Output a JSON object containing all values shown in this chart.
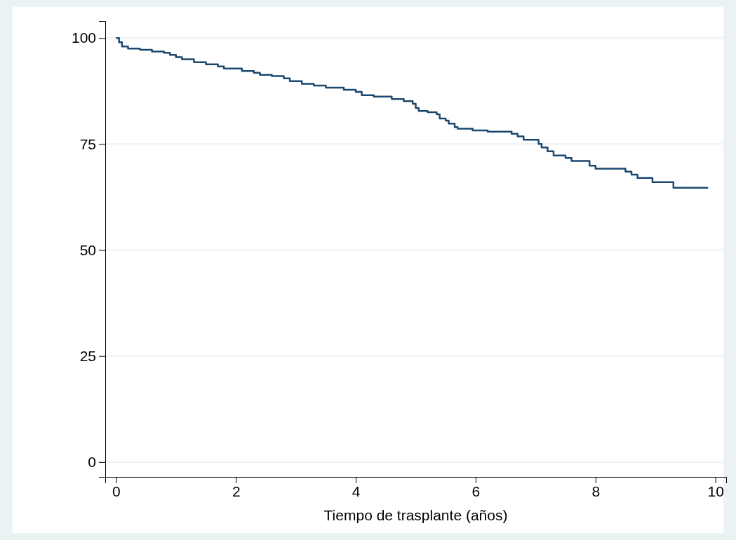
{
  "chart_data": {
    "type": "step",
    "xlabel": "Tiempo de trasplante (años)",
    "xlim": [
      -0.18,
      10.18
    ],
    "xticks": [
      0,
      2,
      4,
      6,
      8,
      10
    ],
    "ylim": [
      -3.5,
      104
    ],
    "yticks": [
      0,
      25,
      50,
      75,
      100
    ],
    "grid": "y",
    "marker": "none",
    "line_style": "solid",
    "series": [
      {
        "color": "#1a476f",
        "x": [
          0,
          0.05,
          0.1,
          0.2,
          0.4,
          0.6,
          0.8,
          0.9,
          1.0,
          1.1,
          1.3,
          1.5,
          1.7,
          1.8,
          2.1,
          2.3,
          2.4,
          2.6,
          2.8,
          2.9,
          3.1,
          3.3,
          3.5,
          3.8,
          4.0,
          4.1,
          4.3,
          4.6,
          4.8,
          4.95,
          5.0,
          5.05,
          5.2,
          5.35,
          5.4,
          5.5,
          5.55,
          5.65,
          5.7,
          5.95,
          6.2,
          6.6,
          6.7,
          6.8,
          7.05,
          7.1,
          7.2,
          7.3,
          7.5,
          7.6,
          7.9,
          8.0,
          8.5,
          8.6,
          8.7,
          8.95,
          9.3,
          9.88
        ],
        "values": [
          100,
          99,
          98,
          97.5,
          97.2,
          96.8,
          96.5,
          96,
          95.5,
          95,
          94.3,
          93.8,
          93.3,
          92.8,
          92.2,
          91.8,
          91.3,
          91,
          90.5,
          89.8,
          89.2,
          88.8,
          88.3,
          87.8,
          87.3,
          86.5,
          86.2,
          85.6,
          85.1,
          84.5,
          83.5,
          82.8,
          82.5,
          82,
          81,
          80.5,
          79.8,
          79,
          78.6,
          78.2,
          77.9,
          77.4,
          76.8,
          76,
          75,
          74.2,
          73.3,
          72.3,
          71.7,
          71,
          69.9,
          69.2,
          68.5,
          67.8,
          67,
          66,
          64.7,
          64.7
        ]
      }
    ]
  }
}
